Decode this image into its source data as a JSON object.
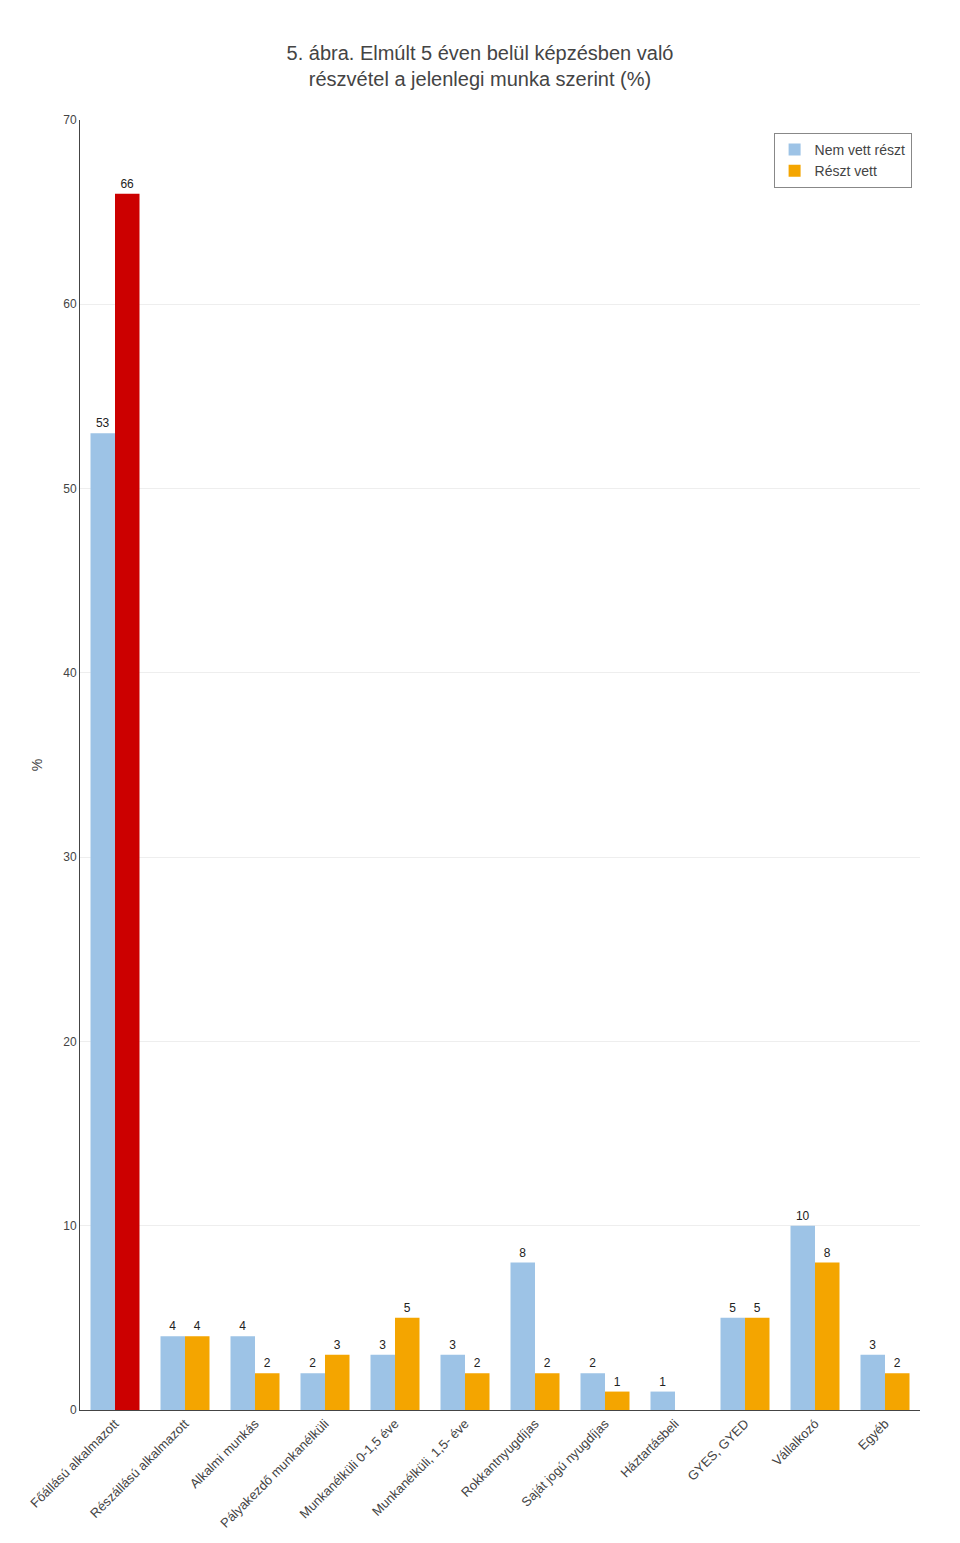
{
  "chart_data": {
    "type": "bar",
    "title": "5. ábra. Elmúlt 5 éven belül képzésben való\nrészvétel a jelenlegi munka szerint (%)",
    "ylabel": "%",
    "categories": [
      "Főállású alkalmazott",
      "Részállású alkalmazott",
      "Alkalmi munkás",
      "Pályakezdő munkanélküli",
      "Munkanélküli 0-1,5 éve",
      "Munkanélküli, 1,5- éve",
      "Rokkantnyugdíjas",
      "Saját jogú nyugdíjas",
      "Háztartásbeli",
      "GYES, GYED",
      "Vállalkozó",
      "Egyéb"
    ],
    "series": [
      {
        "name": "Nem vett részt",
        "color": "#9DC3E6",
        "values": [
          53,
          4,
          4,
          2,
          3,
          3,
          8,
          2,
          1,
          5,
          10,
          3
        ]
      },
      {
        "name": "Részt vett",
        "color": "#F4A500",
        "colors": [
          "#CC0000",
          "#F4A500",
          "#F4A500",
          "#F4A500",
          "#F4A500",
          "#F4A500",
          "#F4A500",
          "#F4A500",
          "#F4A500",
          "#F4A500",
          "#F4A500",
          "#F4A500"
        ],
        "values": [
          66,
          4,
          2,
          3,
          5,
          2,
          2,
          1,
          0,
          5,
          8,
          2
        ],
        "value_labels": [
          "66",
          "4",
          "2",
          "3",
          "5",
          "2",
          "2",
          "1",
          null,
          "5",
          "8",
          "2"
        ]
      }
    ],
    "ylim": [
      0,
      70
    ],
    "yticks": [
      0,
      10,
      20,
      30,
      40,
      50,
      60,
      70
    ],
    "grid": true,
    "legend": "upper right",
    "data_labels": true
  }
}
